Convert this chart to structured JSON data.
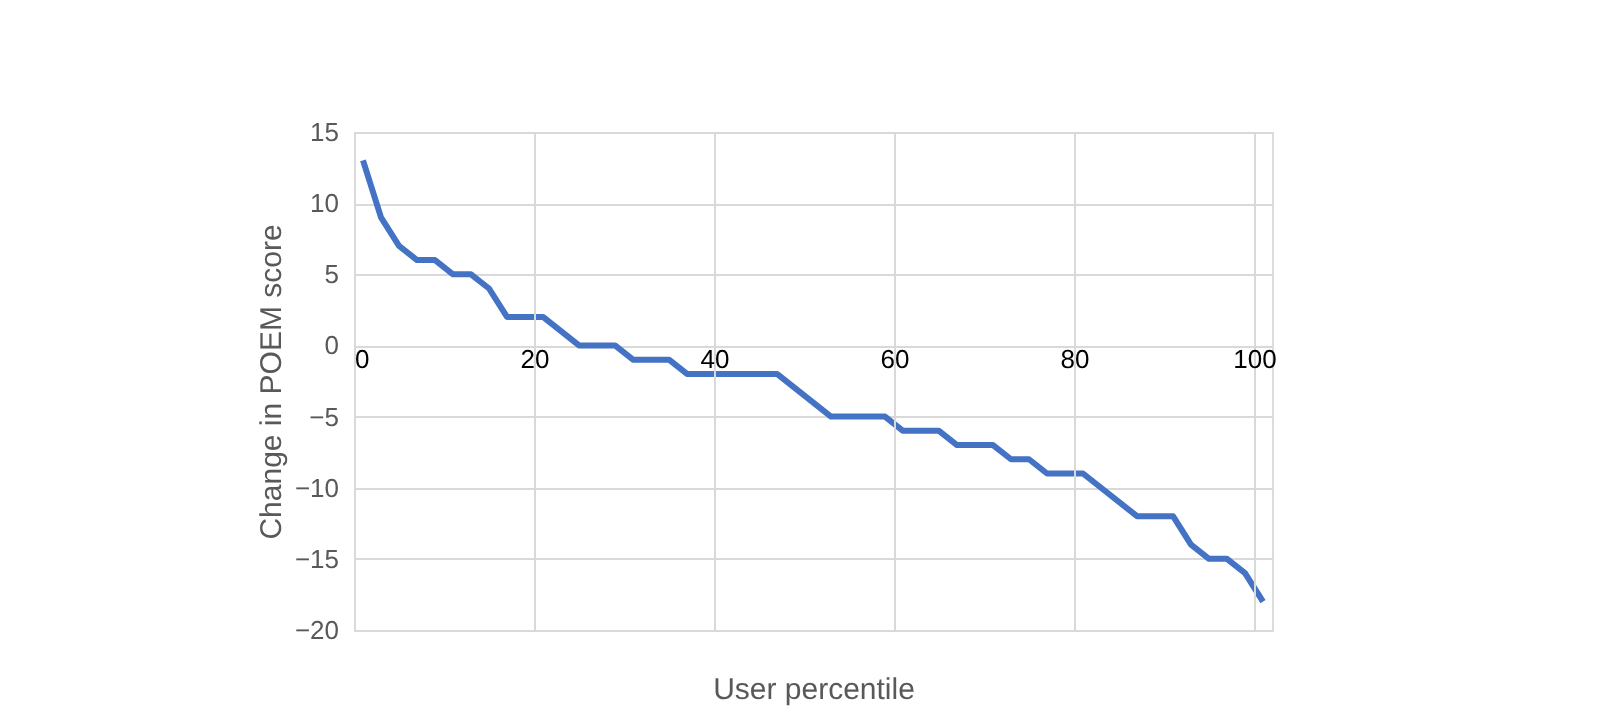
{
  "chart_data": {
    "type": "line",
    "xlabel": "User percentile",
    "ylabel": "Change in POEM score",
    "x": [
      1,
      3,
      5,
      7,
      9,
      11,
      13,
      15,
      17,
      21,
      25,
      29,
      31,
      35,
      37,
      47,
      53,
      59,
      61,
      65,
      67,
      71,
      73,
      75,
      77,
      81,
      87,
      91,
      93,
      95,
      97,
      99,
      101
    ],
    "series": [
      {
        "color": "#4472c4",
        "values": [
          13,
          9,
          7,
          6,
          6,
          5,
          5,
          4,
          2,
          2,
          0,
          0,
          -1,
          -1,
          -2,
          -2,
          -5,
          -5,
          -6,
          -6,
          -7,
          -7,
          -8,
          -8,
          -9,
          -9,
          -12,
          -12,
          -14,
          -15,
          -15,
          -16,
          -18
        ]
      }
    ],
    "xlim": [
      0,
      102
    ],
    "xticks": [
      0,
      20,
      40,
      60,
      80,
      100
    ],
    "ylim": [
      -20,
      15
    ],
    "yticks": [
      -20,
      -15,
      -10,
      -5,
      0,
      5,
      10,
      15
    ],
    "grid": true,
    "legend": false,
    "marker": "none",
    "line_style": "solid"
  }
}
